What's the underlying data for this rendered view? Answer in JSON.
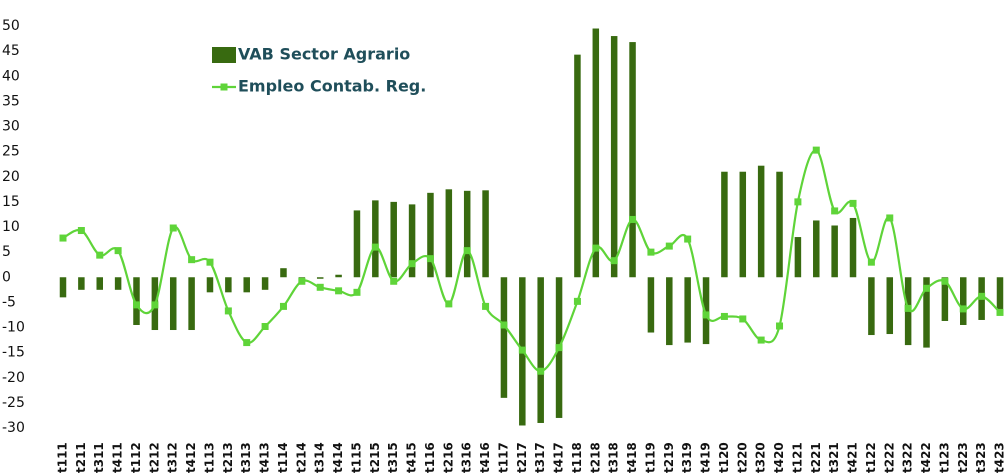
{
  "chart_data": {
    "type": "bar-line",
    "categories": [
      "t111",
      "t211",
      "t311",
      "t411",
      "t112",
      "t212",
      "t312",
      "t412",
      "t113",
      "t213",
      "t313",
      "t413",
      "t114",
      "t214",
      "t314",
      "t414",
      "t115",
      "t215",
      "t315",
      "t415",
      "t116",
      "t216",
      "t316",
      "t416",
      "t117",
      "t217",
      "t317",
      "t417",
      "t118",
      "t218",
      "t318",
      "t418",
      "t119",
      "t219",
      "t319",
      "t419",
      "t120",
      "t220",
      "t320",
      "t420",
      "t121",
      "t221",
      "t321",
      "t421",
      "t122",
      "t222",
      "t322",
      "t422",
      "t123",
      "t223",
      "t323",
      "t423"
    ],
    "series": [
      {
        "name": "VAB Sector Agrario",
        "type": "bar",
        "color": "#386a10",
        "values": [
          -4,
          -2.5,
          -2.5,
          -2.5,
          -9.5,
          -10.5,
          -10.5,
          -10.5,
          -3,
          -3,
          -3,
          -2.5,
          1.8,
          -0.5,
          -0.3,
          0.5,
          13.3,
          15.3,
          15,
          14.5,
          16.8,
          17.5,
          17.2,
          17.3,
          -24,
          -29.5,
          -29,
          -28,
          44.3,
          49.5,
          48,
          46.8,
          -11,
          -13.5,
          -13,
          -13.3,
          21,
          21,
          22.2,
          21,
          8,
          11.3,
          10.3,
          11.8,
          -11.5,
          -11.3,
          -13.5,
          -14,
          -8.7,
          -9.5,
          -8.5,
          -6.5
        ]
      },
      {
        "name": "Empleo Contab. Reg.",
        "type": "line",
        "color": "#5fd439",
        "values": [
          7.8,
          9.3,
          4.4,
          5.3,
          -5.5,
          -5.5,
          9.8,
          3.5,
          3,
          -6.7,
          -13,
          -9.8,
          -5.8,
          -0.8,
          -2,
          -2.7,
          -3,
          6,
          -0.8,
          2.7,
          3.7,
          -5.3,
          5.3,
          -5.8,
          -9.5,
          -14.5,
          -18.7,
          -14,
          -4.8,
          5.8,
          3.3,
          11.5,
          5,
          6.2,
          7.6,
          -7.5,
          -7.8,
          -8.3,
          -12.5,
          -9.7,
          15,
          25.3,
          13.2,
          14.7,
          3,
          11.8,
          -6.2,
          -2.2,
          -0.8,
          -6.3,
          -3.8,
          -7
        ]
      }
    ],
    "ylim": [
      -30,
      50
    ],
    "yticks": [
      -30,
      -25,
      -20,
      -15,
      -10,
      -5,
      0,
      5,
      10,
      15,
      20,
      25,
      30,
      35,
      40,
      45,
      50
    ],
    "legend": "top-left"
  }
}
